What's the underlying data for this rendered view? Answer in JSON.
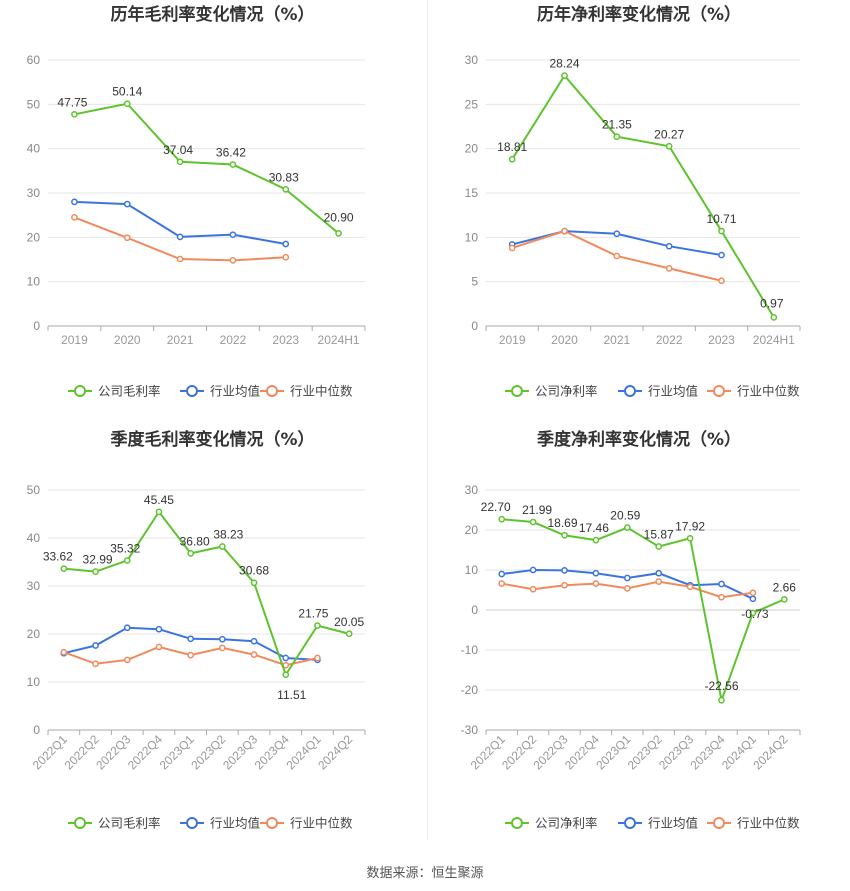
{
  "source": "数据来源：恒生聚源",
  "colors": {
    "company": "#5fc32e",
    "avg": "#3b74e0",
    "median": "#f08a5d"
  },
  "chart_data": [
    {
      "type": "line",
      "title": "历年毛利率变化情况（%）",
      "categories": [
        "2019",
        "2020",
        "2021",
        "2022",
        "2023",
        "2024H1"
      ],
      "ylim": [
        0,
        60
      ],
      "yticks": [
        0,
        10,
        20,
        30,
        40,
        50,
        60
      ],
      "grid": true,
      "legend_position": "bottom",
      "series": [
        {
          "name": "公司毛利率",
          "key": "company",
          "values": [
            47.75,
            50.14,
            37.04,
            36.42,
            30.83,
            20.9
          ],
          "labels": [
            "47.75",
            "50.14",
            "37.04",
            "36.42",
            "30.83",
            "20.90"
          ]
        },
        {
          "name": "行业均值",
          "key": "avg",
          "values": [
            28.0,
            27.5,
            20.1,
            20.6,
            18.5,
            null
          ]
        },
        {
          "name": "行业中位数",
          "key": "median",
          "values": [
            24.5,
            19.9,
            15.1,
            14.8,
            15.5,
            null
          ]
        }
      ]
    },
    {
      "type": "line",
      "title": "历年净利率变化情况（%）",
      "categories": [
        "2019",
        "2020",
        "2021",
        "2022",
        "2023",
        "2024H1"
      ],
      "ylim": [
        0,
        30
      ],
      "yticks": [
        0,
        5,
        10,
        15,
        20,
        25,
        30
      ],
      "grid": true,
      "legend_position": "bottom",
      "series": [
        {
          "name": "公司净利率",
          "key": "company",
          "values": [
            18.81,
            28.24,
            21.35,
            20.27,
            10.71,
            0.97
          ],
          "labels": [
            "18.81",
            "28.24",
            "21.35",
            "20.27",
            "10.71",
            "0.97"
          ]
        },
        {
          "name": "行业均值",
          "key": "avg",
          "values": [
            9.2,
            10.7,
            10.4,
            9.0,
            8.0,
            null
          ]
        },
        {
          "name": "行业中位数",
          "key": "median",
          "values": [
            8.8,
            10.7,
            7.9,
            6.5,
            5.1,
            null
          ]
        }
      ]
    },
    {
      "type": "line",
      "title": "季度毛利率变化情况（%）",
      "categories": [
        "2022Q1",
        "2022Q2",
        "2022Q3",
        "2022Q4",
        "2023Q1",
        "2023Q2",
        "2023Q3",
        "2023Q4",
        "2024Q1",
        "2024Q2"
      ],
      "ylim": [
        0,
        50
      ],
      "yticks": [
        0,
        10,
        20,
        30,
        40,
        50
      ],
      "grid": true,
      "legend_position": "bottom",
      "series": [
        {
          "name": "公司毛利率",
          "key": "company",
          "values": [
            33.62,
            32.99,
            35.32,
            45.45,
            36.8,
            38.23,
            30.68,
            11.51,
            21.75,
            20.05
          ],
          "labels": [
            "33.62",
            "32.99",
            "35.32",
            "45.45",
            "36.80",
            "38.23",
            "30.68",
            "11.51",
            "21.75",
            "20.05"
          ]
        },
        {
          "name": "行业均值",
          "key": "avg",
          "values": [
            16.0,
            17.6,
            21.3,
            21.0,
            19.0,
            18.9,
            18.5,
            15.0,
            14.6,
            null
          ]
        },
        {
          "name": "行业中位数",
          "key": "median",
          "values": [
            16.2,
            13.8,
            14.6,
            17.3,
            15.6,
            17.1,
            15.7,
            13.5,
            15.0,
            null
          ]
        }
      ]
    },
    {
      "type": "line",
      "title": "季度净利率变化情况（%）",
      "categories": [
        "2022Q1",
        "2022Q2",
        "2022Q3",
        "2022Q4",
        "2023Q1",
        "2023Q2",
        "2023Q3",
        "2023Q4",
        "2024Q1",
        "2024Q2"
      ],
      "ylim": [
        -30,
        30
      ],
      "yticks": [
        -30,
        -20,
        -10,
        0,
        10,
        20,
        30
      ],
      "grid": true,
      "legend_position": "bottom",
      "series": [
        {
          "name": "公司净利率",
          "key": "company",
          "values": [
            22.7,
            21.99,
            18.69,
            17.46,
            20.59,
            15.87,
            17.92,
            -22.56,
            -0.73,
            2.66
          ],
          "labels": [
            "22.70",
            "21.99",
            "18.69",
            "17.46",
            "20.59",
            "15.87",
            "17.92",
            "-22.56",
            "-0.73",
            "2.66"
          ]
        },
        {
          "name": "行业均值",
          "key": "avg",
          "values": [
            9.0,
            10.0,
            9.9,
            9.2,
            8.0,
            9.2,
            6.2,
            6.5,
            2.8,
            null
          ]
        },
        {
          "name": "行业中位数",
          "key": "median",
          "values": [
            6.6,
            5.2,
            6.2,
            6.6,
            5.4,
            7.1,
            5.8,
            3.2,
            4.3,
            null
          ]
        }
      ]
    }
  ]
}
